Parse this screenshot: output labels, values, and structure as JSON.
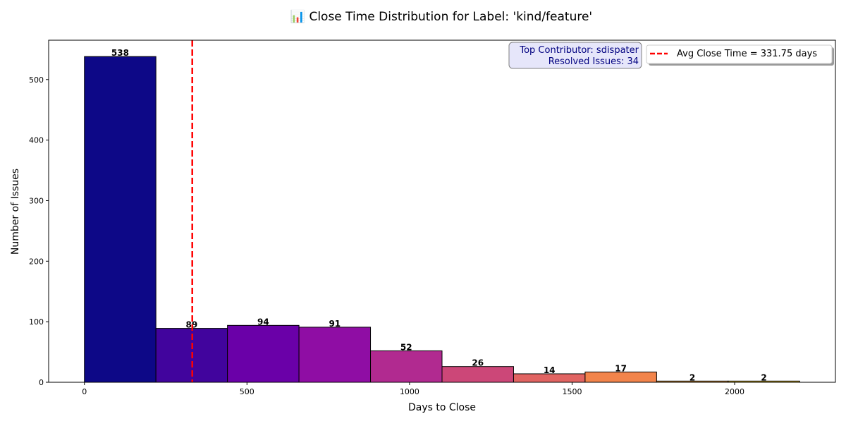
{
  "chart_data": {
    "type": "bar",
    "title": "📊 Close Time Distribution for Label: 'kind/feature'",
    "xlabel": "Days to Close",
    "ylabel": "Number of Issues",
    "xlim": [
      -110,
      2310
    ],
    "ylim": [
      0,
      565
    ],
    "x_ticks": [
      0,
      500,
      1000,
      1500,
      2000
    ],
    "y_ticks": [
      0,
      100,
      200,
      300,
      400,
      500
    ],
    "bin_start": 0,
    "bin_width": 220,
    "values": [
      538,
      89,
      94,
      91,
      52,
      26,
      14,
      17,
      2,
      2
    ],
    "value_labels": [
      "538",
      "89",
      "94",
      "91",
      "52",
      "26",
      "14",
      "17",
      "2",
      "2"
    ],
    "bar_colors": [
      "#0d0887",
      "#41049d",
      "#6a00a8",
      "#8f0da4",
      "#b12a90",
      "#cc4778",
      "#e16462",
      "#f2844b",
      "#fca636",
      "#fcce25"
    ],
    "average_line": {
      "value": 331.75,
      "color": "#ff0000"
    },
    "legend": {
      "label": "Avg Close Time = 331.75 days",
      "position": "top-right"
    },
    "annotation": {
      "line1": "Top Contributor: sdispater",
      "line2": "Resolved Issues: 34"
    },
    "grid": false
  }
}
